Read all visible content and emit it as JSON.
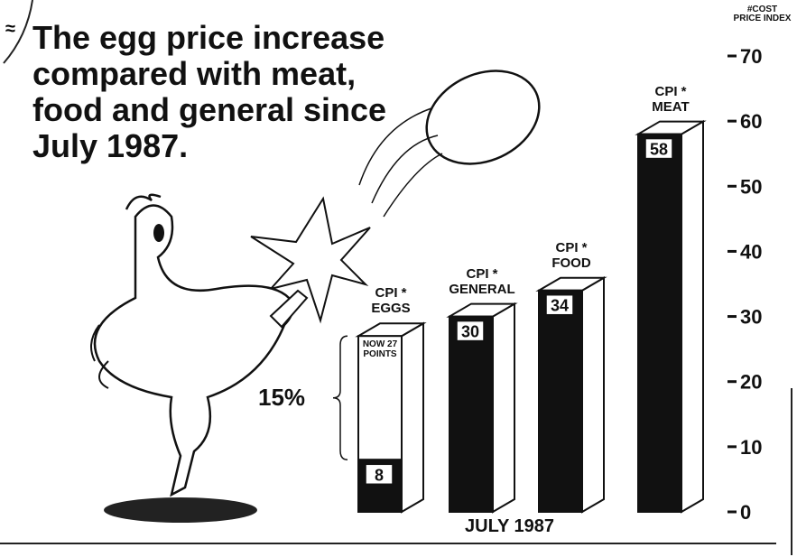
{
  "chart_data": {
    "type": "bar3d",
    "title": "The egg price increase compared with meat, food and general since July 1987.",
    "y_axis_label": "#COST PRICE INDEX",
    "x_axis_label": "JULY 1987",
    "categories": [
      "CPI * EGGS",
      "CPI * GENERAL",
      "CPI * FOOD",
      "CPI * MEAT"
    ],
    "values": [
      8,
      30,
      34,
      58
    ],
    "color": "#111111",
    "eggs_now": {
      "text": "NOW 27 POINTS",
      "value": 27
    },
    "increase_label": "15%",
    "ylim": [
      0,
      70
    ],
    "yticks": [
      0,
      10,
      20,
      30,
      40,
      50,
      60,
      70
    ]
  }
}
